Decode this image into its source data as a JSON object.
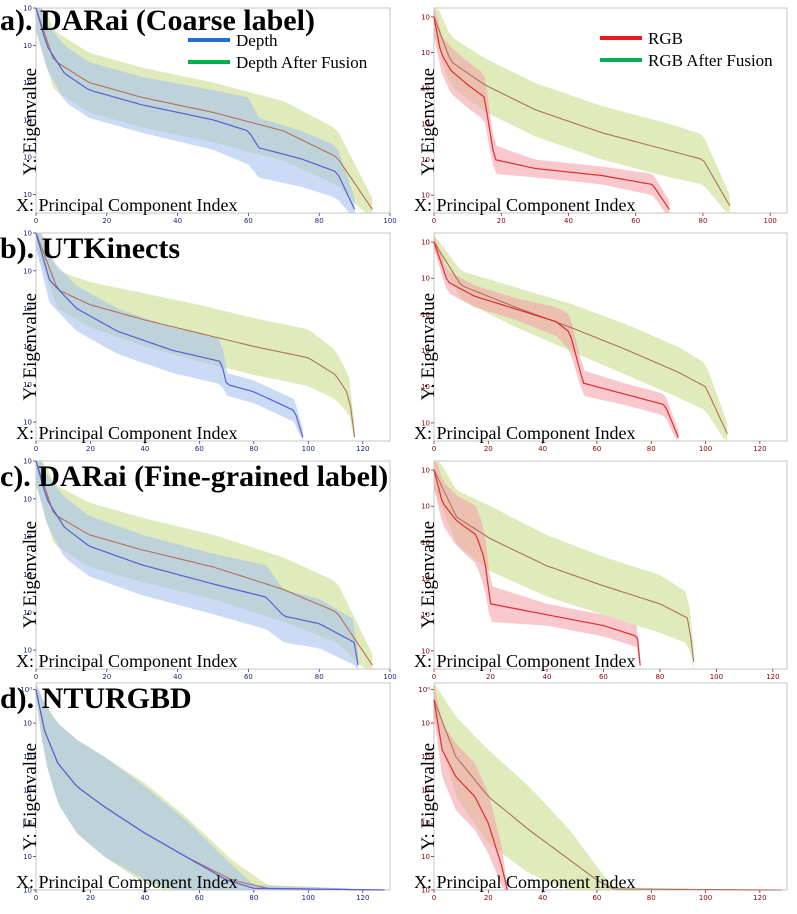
{
  "figure": {
    "legend_left": [
      {
        "label": "Depth",
        "color": "#1f6fcf"
      },
      {
        "label": "Depth After Fusion",
        "color": "#00b050"
      }
    ],
    "legend_right": [
      {
        "label": "RGB",
        "color": "#e8191c"
      },
      {
        "label": "RGB After Fusion",
        "color": "#00b050"
      }
    ],
    "colors": {
      "depth_line": "#5560d8",
      "depth_band": "#a9c2ee",
      "rgb_line": "#e02c2c",
      "rgb_band": "#f4a3aa",
      "fusion_line": "#b0705c",
      "fusion_band": "#c9de8e",
      "overlap_band": "#8fc49a",
      "axis_left": "#1a237e",
      "axis_right": "#8b0000"
    }
  },
  "chart_data": [
    {
      "row": "a",
      "title": "a). DARai (Coarse label)",
      "xlabel": "X: Principal Component Index",
      "ylabel": "Y: Eigenvalue",
      "panels": [
        {
          "side": "left",
          "type": "line",
          "xlim": [
            0,
            100
          ],
          "xticks": [
            0,
            20,
            40,
            60,
            80,
            100
          ],
          "ylog": [
            -10,
            1
          ],
          "yticks": [
            -9,
            -7,
            -5,
            -3,
            -1,
            1
          ],
          "base": {
            "name": "Depth",
            "x": [
              0,
              3,
              8,
              15,
              30,
              50,
              60,
              63,
              75,
              85,
              90
            ],
            "y": [
              1,
              -1,
              -2.5,
              -3.4,
              -4.2,
              -5,
              -5.6,
              -6.5,
              -7.1,
              -7.8,
              -9.8
            ],
            "band": [
              1.2,
              1.2,
              1.5,
              1.5,
              1.5,
              1.6,
              1.8,
              1.6,
              1.5,
              1.4,
              0.6
            ]
          },
          "fusion": {
            "name": "Depth After Fusion",
            "x": [
              0,
              5,
              15,
              30,
              50,
              70,
              85,
              95
            ],
            "y": [
              1,
              -1.8,
              -3,
              -3.8,
              -4.6,
              -5.6,
              -7,
              -9.8
            ],
            "band": [
              1.2,
              1.6,
              1.6,
              1.6,
              1.6,
              1.6,
              1.5,
              0.6
            ]
          }
        },
        {
          "side": "right",
          "type": "line",
          "xlim": [
            0,
            105
          ],
          "xticks": [
            0,
            20,
            40,
            60,
            80,
            100
          ],
          "ylog": [
            -10,
            1.5
          ],
          "yticks": [
            -9,
            -7,
            -5,
            -3,
            -1,
            1
          ],
          "base": {
            "name": "RGB",
            "x": [
              0,
              2,
              5,
              10,
              15,
              18,
              30,
              50,
              65,
              70
            ],
            "y": [
              1,
              -1,
              -2,
              -2.8,
              -3.5,
              -7,
              -7.5,
              -7.9,
              -8.4,
              -9.8
            ],
            "band": [
              1,
              1,
              1.3,
              1.3,
              1.3,
              0.8,
              0.5,
              0.5,
              0.6,
              0.5
            ]
          },
          "fusion": {
            "name": "RGB After Fusion",
            "x": [
              0,
              5,
              15,
              30,
              50,
              70,
              80,
              88
            ],
            "y": [
              1,
              -1.5,
              -2.8,
              -4.2,
              -5.5,
              -6.5,
              -7,
              -9.6
            ],
            "band": [
              1,
              1.4,
              1.5,
              1.5,
              1.5,
              1.5,
              1.4,
              0.6
            ]
          }
        }
      ]
    },
    {
      "row": "b",
      "title": "b). UTKinects",
      "xlabel": "X: Principal Component Index",
      "ylabel": "Y: Eigenvalue",
      "panels": [
        {
          "side": "left",
          "type": "line",
          "xlim": [
            0,
            130
          ],
          "xticks": [
            0,
            20,
            40,
            60,
            80,
            100,
            120
          ],
          "ylog": [
            -10,
            1
          ],
          "yticks": [
            -9,
            -7,
            -5,
            -3,
            -1,
            1
          ],
          "base": {
            "name": "Depth",
            "x": [
              0,
              5,
              15,
              30,
              50,
              68,
              70,
              80,
              95,
              98
            ],
            "y": [
              1,
              -1.5,
              -3,
              -4.2,
              -5.2,
              -5.8,
              -7,
              -7.4,
              -8.4,
              -9.8
            ],
            "band": [
              0.8,
              1.2,
              1.2,
              1.2,
              1.2,
              1.2,
              0.6,
              0.6,
              0.6,
              0.4
            ]
          },
          "fusion": {
            "name": "Depth After Fusion",
            "x": [
              0,
              8,
              20,
              40,
              60,
              80,
              100,
              110,
              115,
              117
            ],
            "y": [
              1,
              -2,
              -2.8,
              -3.6,
              -4.3,
              -5,
              -5.6,
              -6.5,
              -7.6,
              -9.8
            ],
            "band": [
              0.8,
              1,
              1.2,
              1.4,
              1.5,
              1.5,
              1.5,
              1.3,
              1,
              0.5
            ]
          }
        },
        {
          "side": "right",
          "type": "line",
          "xlim": [
            0,
            130
          ],
          "xticks": [
            0,
            20,
            40,
            60,
            80,
            100,
            120
          ],
          "ylog": [
            -10,
            1.5
          ],
          "yticks": [
            -9,
            -7,
            -5,
            -3,
            -1,
            1
          ],
          "base": {
            "name": "RGB",
            "x": [
              0,
              5,
              15,
              30,
              45,
              50,
              55,
              70,
              85,
              90
            ],
            "y": [
              1,
              -1.2,
              -2,
              -2.7,
              -3.4,
              -4,
              -6.8,
              -7.4,
              -8,
              -9.8
            ],
            "band": [
              0.4,
              0.6,
              0.6,
              0.6,
              0.8,
              1,
              0.7,
              0.6,
              0.6,
              0.4
            ]
          },
          "fusion": {
            "name": "RGB After Fusion",
            "x": [
              0,
              10,
              30,
              50,
              70,
              90,
              100,
              108
            ],
            "y": [
              1,
              -1.4,
              -2.6,
              -3.7,
              -4.9,
              -6.2,
              -7,
              -9.6
            ],
            "band": [
              0.4,
              0.8,
              1.1,
              1.3,
              1.4,
              1.4,
              1.3,
              0.6
            ]
          }
        }
      ]
    },
    {
      "row": "c",
      "title": "c). DARai (Fine-grained label)",
      "xlabel": "X: Principal Component Index",
      "ylabel": "Y: Eigenvalue",
      "panels": [
        {
          "side": "left",
          "type": "line",
          "xlim": [
            0,
            100
          ],
          "xticks": [
            0,
            20,
            40,
            60,
            80,
            100
          ],
          "ylog": [
            -10,
            1
          ],
          "yticks": [
            -9,
            -7,
            -5,
            -3,
            -1,
            1
          ],
          "base": {
            "name": "Depth",
            "x": [
              0,
              3,
              8,
              15,
              30,
              50,
              65,
              70,
              80,
              90,
              91
            ],
            "y": [
              1,
              -1,
              -2.5,
              -3.5,
              -4.5,
              -5.5,
              -6.2,
              -7.2,
              -7.6,
              -8.6,
              -9.8
            ],
            "band": [
              1.2,
              1.3,
              1.6,
              1.6,
              1.6,
              1.6,
              1.7,
              1.4,
              1.3,
              1.2,
              0.6
            ]
          },
          "fusion": {
            "name": "Depth After Fusion",
            "x": [
              0,
              5,
              15,
              30,
              50,
              70,
              85,
              95
            ],
            "y": [
              1,
              -1.8,
              -2.9,
              -3.7,
              -4.6,
              -5.8,
              -7,
              -9.8
            ],
            "band": [
              1.2,
              1.6,
              1.7,
              1.7,
              1.7,
              1.7,
              1.6,
              0.6
            ]
          }
        },
        {
          "side": "right",
          "type": "line",
          "xlim": [
            0,
            125
          ],
          "xticks": [
            0,
            20,
            40,
            60,
            80,
            100,
            120
          ],
          "ylog": [
            -10,
            1.5
          ],
          "yticks": [
            -9,
            -7,
            -5,
            -3,
            -1,
            1
          ],
          "base": {
            "name": "RGB",
            "x": [
              0,
              3,
              8,
              15,
              18,
              20,
              40,
              60,
              72,
              73
            ],
            "y": [
              1,
              -0.8,
              -1.8,
              -2.6,
              -4,
              -6.4,
              -7,
              -7.6,
              -8.2,
              -9.8
            ],
            "band": [
              1,
              1.2,
              1.4,
              1.6,
              1.6,
              1,
              0.6,
              0.6,
              0.6,
              0.4
            ]
          },
          "fusion": {
            "name": "RGB After Fusion",
            "x": [
              0,
              8,
              20,
              40,
              60,
              80,
              90,
              92
            ],
            "y": [
              1,
              -1.6,
              -2.8,
              -4.3,
              -5.4,
              -6.4,
              -7.2,
              -9.6
            ],
            "band": [
              1,
              1.5,
              1.8,
              1.7,
              1.6,
              1.6,
              1.4,
              0.6
            ]
          }
        }
      ]
    },
    {
      "row": "d",
      "title": "d). NTURGBD",
      "xlabel": "X: Principal Component Index",
      "ylabel": "Y: Eigenvalue",
      "panels": [
        {
          "side": "left",
          "type": "line",
          "xlim": [
            0,
            130
          ],
          "xticks": [
            0,
            20,
            40,
            60,
            80,
            100,
            120
          ],
          "ylog": [
            -6,
            0.2
          ],
          "yticks": [
            -6,
            -5,
            -4,
            -3,
            -2,
            -1,
            0
          ],
          "base": {
            "name": "Depth",
            "x": [
              0,
              3,
              8,
              15,
              25,
              40,
              55,
              70,
              80,
              128
            ],
            "y": [
              0,
              -1.2,
              -2.2,
              -2.9,
              -3.5,
              -4.3,
              -5,
              -5.7,
              -5.95,
              -6
            ],
            "band": [
              0.2,
              0.8,
              1.2,
              1.4,
              1.5,
              1.4,
              1.1,
              0.6,
              0.1,
              0
            ]
          },
          "fusion": {
            "name": "Depth After Fusion",
            "x": [
              0,
              3,
              8,
              15,
              25,
              40,
              55,
              72,
              85,
              128
            ],
            "y": [
              0,
              -1.2,
              -2.2,
              -2.9,
              -3.5,
              -4.3,
              -5,
              -5.7,
              -5.95,
              -6
            ],
            "band": [
              0.2,
              0.8,
              1.2,
              1.4,
              1.5,
              1.5,
              1.2,
              0.6,
              0.1,
              0
            ]
          }
        },
        {
          "side": "right",
          "type": "line",
          "xlim": [
            0,
            130
          ],
          "xticks": [
            0,
            20,
            40,
            60,
            80,
            100,
            120
          ],
          "ylog": [
            -6,
            0.2
          ],
          "yticks": [
            -6,
            -5,
            -4,
            -3,
            -2,
            -1,
            0
          ],
          "base": {
            "name": "RGB",
            "x": [
              0,
              3,
              8,
              15,
              20,
              25,
              27
            ],
            "y": [
              -0.3,
              -1.8,
              -2.6,
              -3.2,
              -4,
              -5.3,
              -6
            ],
            "band": [
              0.5,
              0.8,
              1,
              1,
              0.9,
              0.6,
              0.1
            ]
          },
          "fusion": {
            "name": "RGB After Fusion",
            "x": [
              0,
              8,
              20,
              35,
              50,
              60,
              66,
              128
            ],
            "y": [
              -0.3,
              -2,
              -3.2,
              -4.2,
              -5.1,
              -5.7,
              -5.97,
              -6
            ],
            "band": [
              0.5,
              1.2,
              1.4,
              1.3,
              0.9,
              0.4,
              0.05,
              0
            ]
          }
        }
      ]
    }
  ]
}
